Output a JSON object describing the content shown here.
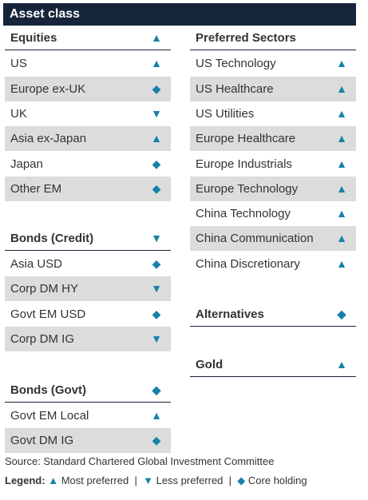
{
  "title": "Asset class",
  "left": {
    "equities": {
      "header": {
        "label": "Equities",
        "icon": "triangle-up-icon"
      },
      "items": [
        {
          "label": "US",
          "icon": "triangle-up-icon"
        },
        {
          "label": "Europe ex-UK",
          "icon": "diamond-icon"
        },
        {
          "label": "UK",
          "icon": "triangle-down-icon"
        },
        {
          "label": "Asia ex-Japan",
          "icon": "triangle-up-icon"
        },
        {
          "label": "Japan",
          "icon": "diamond-icon"
        },
        {
          "label": "Other EM",
          "icon": "diamond-icon"
        }
      ]
    },
    "bonds_credit": {
      "header": {
        "label": "Bonds (Credit)",
        "icon": "triangle-down-icon"
      },
      "items": [
        {
          "label": "Asia USD",
          "icon": "diamond-icon"
        },
        {
          "label": "Corp DM HY",
          "icon": "triangle-down-icon"
        },
        {
          "label": "Govt EM USD",
          "icon": "diamond-icon"
        },
        {
          "label": "Corp DM IG",
          "icon": "triangle-down-icon"
        }
      ]
    },
    "bonds_govt": {
      "header": {
        "label": "Bonds (Govt)",
        "icon": "diamond-icon"
      },
      "items": [
        {
          "label": "Govt EM Local",
          "icon": "triangle-up-icon"
        },
        {
          "label": "Govt DM IG",
          "icon": "diamond-icon"
        }
      ]
    }
  },
  "right": {
    "preferred_sectors": {
      "header": {
        "label": "Preferred Sectors"
      },
      "items": [
        {
          "label": "US Technology",
          "icon": "triangle-up-icon"
        },
        {
          "label": "US Healthcare",
          "icon": "triangle-up-icon"
        },
        {
          "label": "US Utilities",
          "icon": "triangle-up-icon"
        },
        {
          "label": "Europe Healthcare",
          "icon": "triangle-up-icon"
        },
        {
          "label": "Europe Industrials",
          "icon": "triangle-up-icon"
        },
        {
          "label": "Europe Technology",
          "icon": "triangle-up-icon"
        },
        {
          "label": "China Technology",
          "icon": "triangle-up-icon"
        },
        {
          "label": "China Communication",
          "icon": "triangle-up-icon"
        },
        {
          "label": "China Discretionary",
          "icon": "triangle-up-icon"
        }
      ]
    },
    "alternatives": {
      "label": "Alternatives",
      "icon": "diamond-icon"
    },
    "gold": {
      "label": "Gold",
      "icon": "triangle-up-icon"
    }
  },
  "symbols": {
    "up": "▲",
    "down": "▼",
    "diamond": "◆"
  },
  "accent_color": "#1481a8",
  "header_color": "#16253a",
  "source": "Source: Standard Chartered Global Investment Committee",
  "legend": {
    "label": "Legend:",
    "most": "Most preferred",
    "less": "Less preferred",
    "core": "Core holding",
    "sep": "|"
  }
}
